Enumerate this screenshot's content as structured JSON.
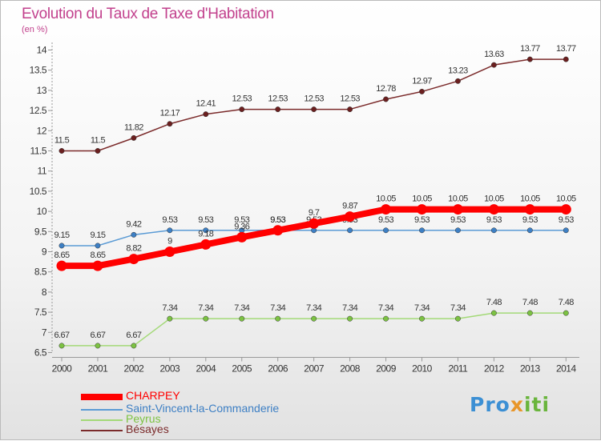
{
  "header": {
    "title": "Evolution du Taux de Taxe d'Habitation",
    "subtitle": "(en %)"
  },
  "logo": {
    "p1": "Pro",
    "p2": "x",
    "p3": "iti"
  },
  "chart_data": {
    "type": "line",
    "title": "Evolution du Taux de Taxe d'Habitation",
    "subtitle": "(en %)",
    "xlabel": "",
    "ylabel": "(en %)",
    "x": [
      "2000",
      "2001",
      "2002",
      "2003",
      "2004",
      "2005",
      "2006",
      "2007",
      "2008",
      "2009",
      "2010",
      "2011",
      "2012",
      "2013",
      "2014"
    ],
    "ylim": [
      6.5,
      14
    ],
    "yticks": [
      6.5,
      7,
      7.5,
      8,
      8.5,
      9,
      9.5,
      10,
      10.5,
      11,
      11.5,
      12,
      12.5,
      13,
      13.5,
      14
    ],
    "grid": false,
    "legend_position": "bottom-left",
    "series": [
      {
        "name": "Bésayes",
        "color": "#7b2b2b",
        "marker": "#6b1f1f",
        "values": [
          11.5,
          11.5,
          11.82,
          12.17,
          12.41,
          12.53,
          12.53,
          12.53,
          12.53,
          12.78,
          12.97,
          13.23,
          13.63,
          13.77,
          13.77
        ],
        "labels": [
          "11.5",
          "11.5",
          "11.82",
          "12.17",
          "12.41",
          "12.53",
          "12.53",
          "12.53",
          "12.53",
          "12.78",
          "12.97",
          "13.23",
          "13.63",
          "13.77",
          "13.77"
        ]
      },
      {
        "name": "Saint-Vincent-la-Commanderie",
        "color": "#5b9bd5",
        "marker": "#3d7fc4",
        "values": [
          9.15,
          9.15,
          9.42,
          9.53,
          9.53,
          9.53,
          9.53,
          9.53,
          9.53,
          9.53,
          9.53,
          9.53,
          9.53,
          9.53,
          9.53
        ],
        "labels": [
          "9.15",
          "9.15",
          "9.42",
          "9.53",
          "9.53",
          "9.53",
          "9.53",
          "9.53",
          "9.53",
          "9.53",
          "9.53",
          "9.53",
          "9.53",
          "9.53",
          "9.53"
        ]
      },
      {
        "name": "Peyrus",
        "color": "#a3d977",
        "marker": "#7cc242",
        "values": [
          6.67,
          6.67,
          6.67,
          7.34,
          7.34,
          7.34,
          7.34,
          7.34,
          7.34,
          7.34,
          7.34,
          7.34,
          7.48,
          7.48,
          7.48
        ],
        "labels": [
          "6.67",
          "6.67",
          "6.67",
          "7.34",
          "7.34",
          "7.34",
          "7.34",
          "7.34",
          "7.34",
          "7.34",
          "7.34",
          "7.34",
          "7.48",
          "7.48",
          "7.48"
        ]
      },
      {
        "name": "CHARPEY",
        "color": "#ff0000",
        "marker": "#ff0000",
        "values": [
          8.65,
          8.65,
          8.82,
          9.0,
          9.18,
          9.36,
          9.53,
          9.7,
          9.87,
          10.05,
          10.05,
          10.05,
          10.05,
          10.05,
          10.05
        ],
        "labels": [
          "8.65",
          "8.65",
          "8.82",
          "9",
          "9.18",
          "9.36",
          "9.53",
          "9.7",
          "9.87",
          "10.05",
          "10.05",
          "10.05",
          "10.05",
          "10.05",
          "10.05"
        ]
      }
    ],
    "legend": [
      {
        "label": "CHARPEY",
        "color": "#ff0000"
      },
      {
        "label": "Saint-Vincent-la-Commanderie",
        "color": "#5b9bd5"
      },
      {
        "label": "Peyrus",
        "color": "#a3d977"
      },
      {
        "label": "Bésayes",
        "color": "#7b2b2b"
      }
    ]
  }
}
